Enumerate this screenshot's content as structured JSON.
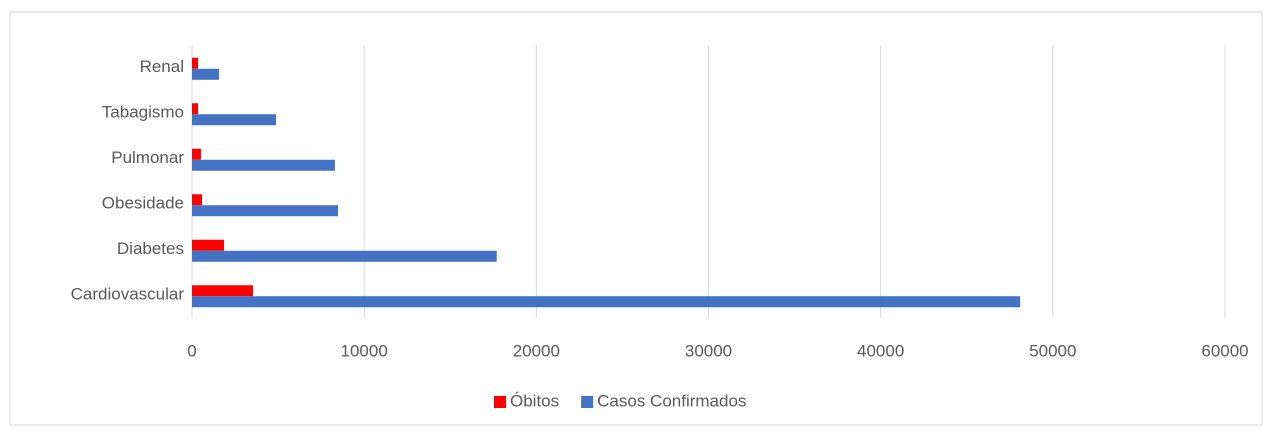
{
  "chart_data": {
    "type": "bar",
    "orientation": "horizontal",
    "categories": [
      "Cardiovascular",
      "Diabetes",
      "Obesidade",
      "Pulmonar",
      "Tabagismo",
      "Renal"
    ],
    "series": [
      {
        "name": "Óbitos",
        "color": "#ff0000",
        "values": [
          3540,
          1860,
          580,
          520,
          350,
          350
        ]
      },
      {
        "name": "Casos Confirmados",
        "color": "#4472c4",
        "values": [
          48100,
          17700,
          8480,
          8300,
          4880,
          1570
        ]
      }
    ],
    "xlim": [
      0,
      60000
    ],
    "xticks": [
      0,
      10000,
      20000,
      30000,
      40000,
      50000,
      60000
    ],
    "grid": true,
    "legend": "bottom"
  }
}
